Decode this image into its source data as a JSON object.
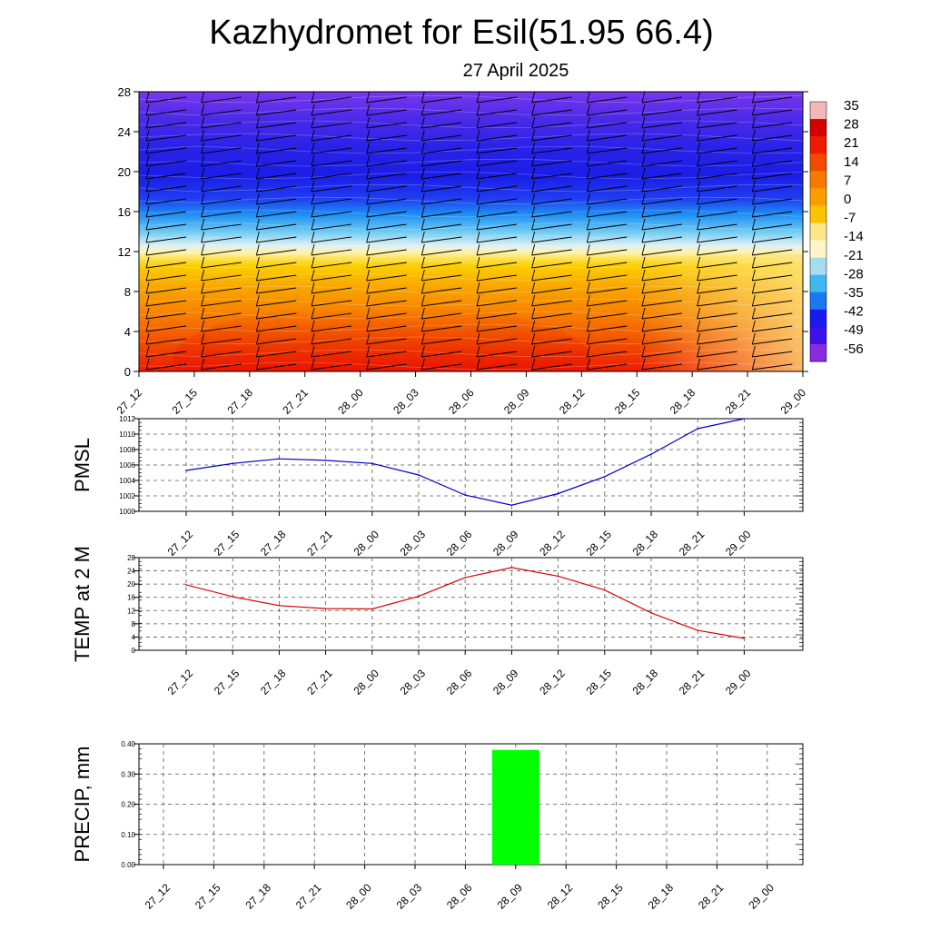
{
  "title": "Kazhydromet for Esil(51.95 66.4)",
  "subtitle": "27 April 2025",
  "time_labels": [
    "27_12",
    "27_15",
    "27_18",
    "27_21",
    "28_00",
    "28_03",
    "28_06",
    "28_09",
    "28_12",
    "28_15",
    "28_18",
    "28_21",
    "29_00"
  ],
  "chart_data": [
    {
      "type": "heatmap",
      "name": "upper-air-temperature-section",
      "y_ticks": [
        0,
        4,
        8,
        12,
        16,
        20,
        24,
        28
      ],
      "ylim": [
        0,
        28
      ],
      "colorbar_labels": [
        "35",
        "28",
        "21",
        "14",
        "7",
        "0",
        "-7",
        "-14",
        "-21",
        "-28",
        "-35",
        "-42",
        "-49",
        "-56"
      ],
      "colorbar_colors": [
        "#f4b6b6",
        "#d40000",
        "#ef1b00",
        "#f24a00",
        "#f77a00",
        "#fa9e00",
        "#fbc300",
        "#fde68a",
        "#fff6c8",
        "#a7dcf0",
        "#3fb7f1",
        "#1a78ef",
        "#1a1af0",
        "#3f10e8",
        "#8a2be2"
      ],
      "wind_barbs": "shown"
    },
    {
      "type": "line",
      "name": "pmsl",
      "ylabel": "PMSL",
      "ylim": [
        1000,
        1012
      ],
      "y_ticks": [
        1000,
        1002,
        1004,
        1006,
        1008,
        1010,
        1012
      ],
      "values": [
        1005.3,
        1006.2,
        1006.8,
        1006.6,
        1006.2,
        1004.7,
        1002.1,
        1000.8,
        1002.3,
        1004.5,
        1007.4,
        1010.7,
        1012.0
      ],
      "color": "#0000cc",
      "grid": true
    },
    {
      "type": "line",
      "name": "temp-2m",
      "ylabel": "TEMP at 2 M",
      "ylim": [
        0,
        28
      ],
      "y_ticks": [
        0,
        4,
        8,
        12,
        16,
        20,
        24,
        28
      ],
      "values": [
        19.8,
        16.2,
        13.5,
        12.6,
        12.5,
        16.3,
        22.0,
        25.0,
        22.4,
        18.2,
        11.3,
        6.0,
        3.6
      ],
      "color": "#dd0000",
      "grid": true
    },
    {
      "type": "bar",
      "name": "precip",
      "ylabel": "PRECIP, mm",
      "ylim": [
        0,
        0.4
      ],
      "y_ticks": [
        "0.00",
        "0.10",
        "0.20",
        "0.30",
        "0.40"
      ],
      "values": [
        0,
        0,
        0,
        0,
        0,
        0,
        0,
        0.38,
        0,
        0,
        0,
        0,
        0
      ],
      "color": "#00ff00",
      "grid": true
    }
  ]
}
